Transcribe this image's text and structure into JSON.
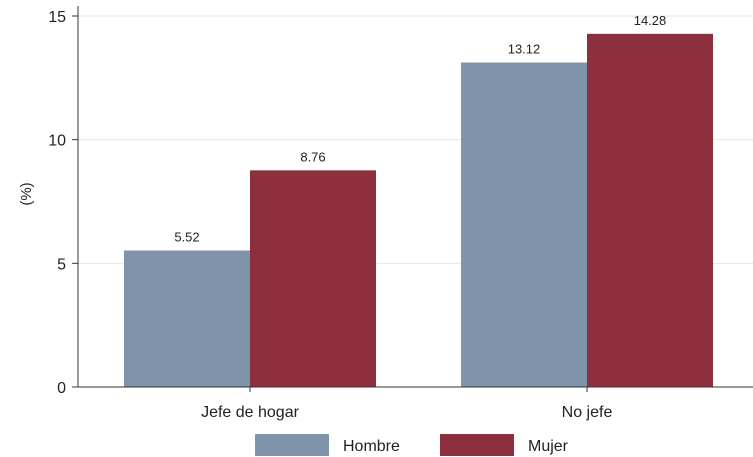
{
  "chart_data": {
    "type": "bar",
    "title": "",
    "xlabel": "",
    "ylabel": "(%)",
    "categories": [
      "Jefe de hogar",
      "No jefe"
    ],
    "series": [
      {
        "name": "Hombre",
        "values": [
          5.52,
          13.12
        ],
        "color": "#7f93aa"
      },
      {
        "name": "Mujer",
        "values": [
          8.76,
          14.28
        ],
        "color": "#8d2f3c"
      }
    ],
    "data_labels": {
      "Hombre": [
        "5.52",
        "13.12"
      ],
      "Mujer": [
        "8.76",
        "14.28"
      ]
    },
    "ylim": [
      0,
      15
    ],
    "yticks": [
      0,
      5,
      10,
      15
    ],
    "ytick_labels": [
      "0",
      "5",
      "10",
      "15"
    ],
    "grid": true,
    "legend_position": "bottom"
  }
}
